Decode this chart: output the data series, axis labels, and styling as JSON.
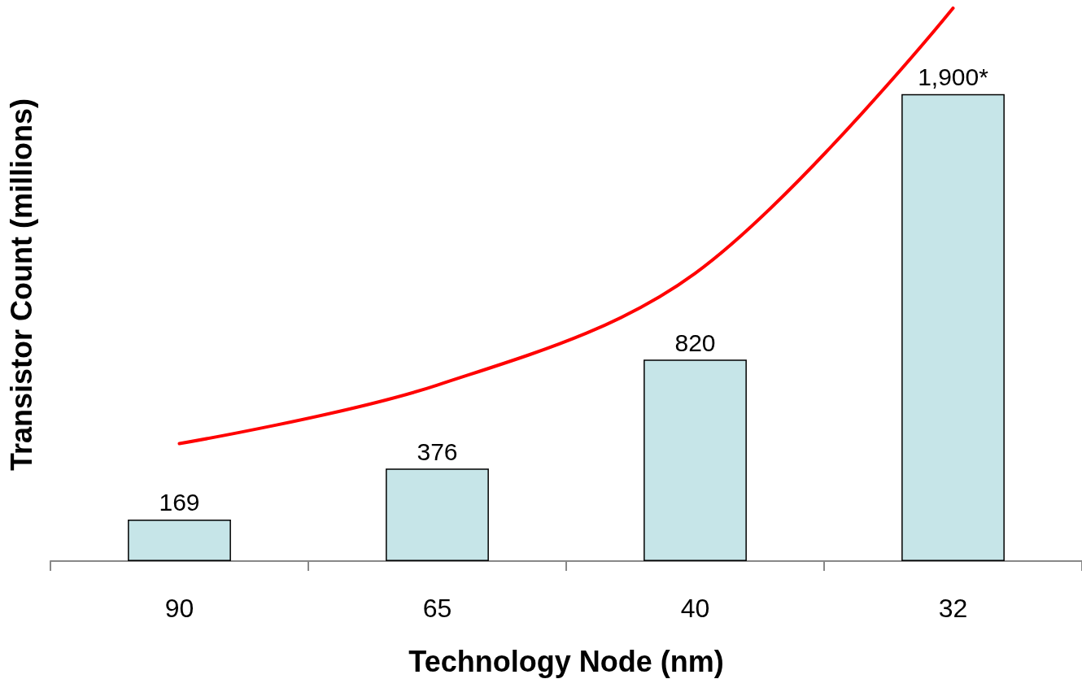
{
  "chart_data": {
    "type": "bar",
    "xlabel": "Technology Node (nm)",
    "ylabel": "Transistor Count (millions)",
    "categories": [
      "90",
      "65",
      "40",
      "32"
    ],
    "series": [
      {
        "color": "#c6e5e8",
        "values": [
          169,
          376,
          820,
          1900
        ],
        "value_labels": [
          "169",
          "376",
          "820",
          "1,900*"
        ]
      },
      {
        "type": "line",
        "color": "#ff0000",
        "x": [
          "90",
          "65",
          "40",
          "32"
        ],
        "values": [
          478,
          716,
          1171,
          2250
        ],
        "marker": "none",
        "line_style": "solid"
      }
    ]
  }
}
